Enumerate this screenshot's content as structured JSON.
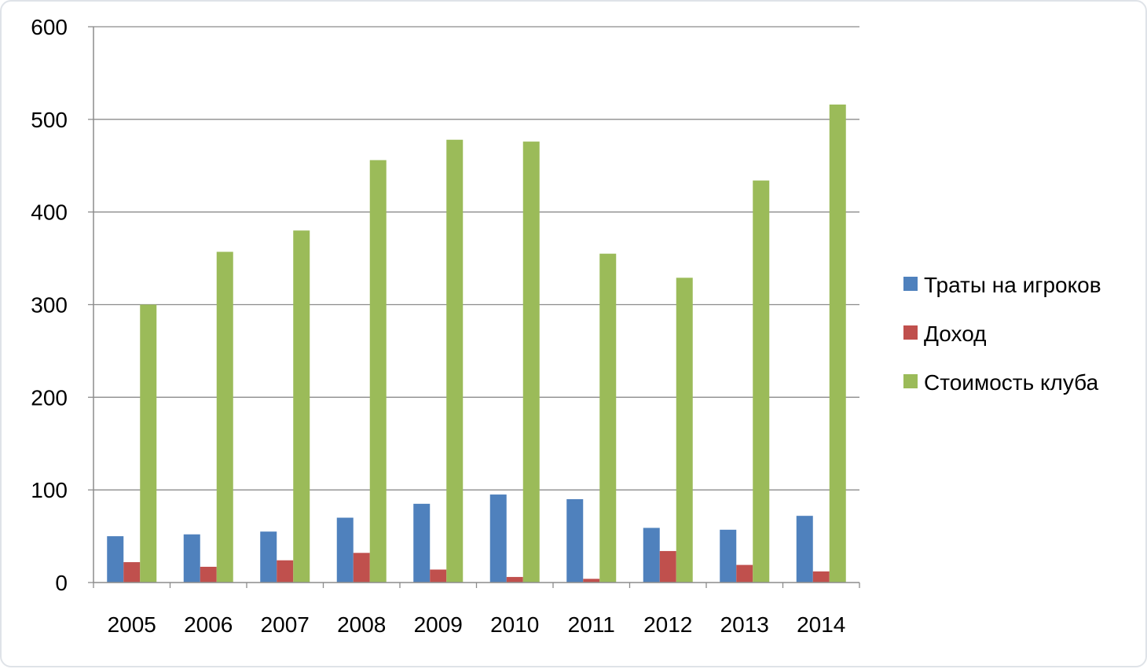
{
  "chart_data": {
    "type": "bar",
    "categories": [
      "2005",
      "2006",
      "2007",
      "2008",
      "2009",
      "2010",
      "2011",
      "2012",
      "2013",
      "2014"
    ],
    "series": [
      {
        "name": "Траты на игроков",
        "color": "#4f81bd",
        "values": [
          50,
          52,
          55,
          70,
          85,
          95,
          90,
          59,
          57,
          72
        ]
      },
      {
        "name": "Доход",
        "color": "#c0504d",
        "values": [
          22,
          17,
          24,
          32,
          14,
          6,
          4,
          34,
          19,
          12
        ]
      },
      {
        "name": "Стоимость клуба",
        "color": "#9bbb59",
        "values": [
          300,
          357,
          380,
          456,
          478,
          476,
          355,
          329,
          434,
          516
        ]
      }
    ],
    "y_ticks": [
      "0",
      "100",
      "200",
      "300",
      "400",
      "500",
      "600"
    ],
    "ylim": [
      0,
      600
    ],
    "grid": true,
    "legend_position": "right"
  }
}
